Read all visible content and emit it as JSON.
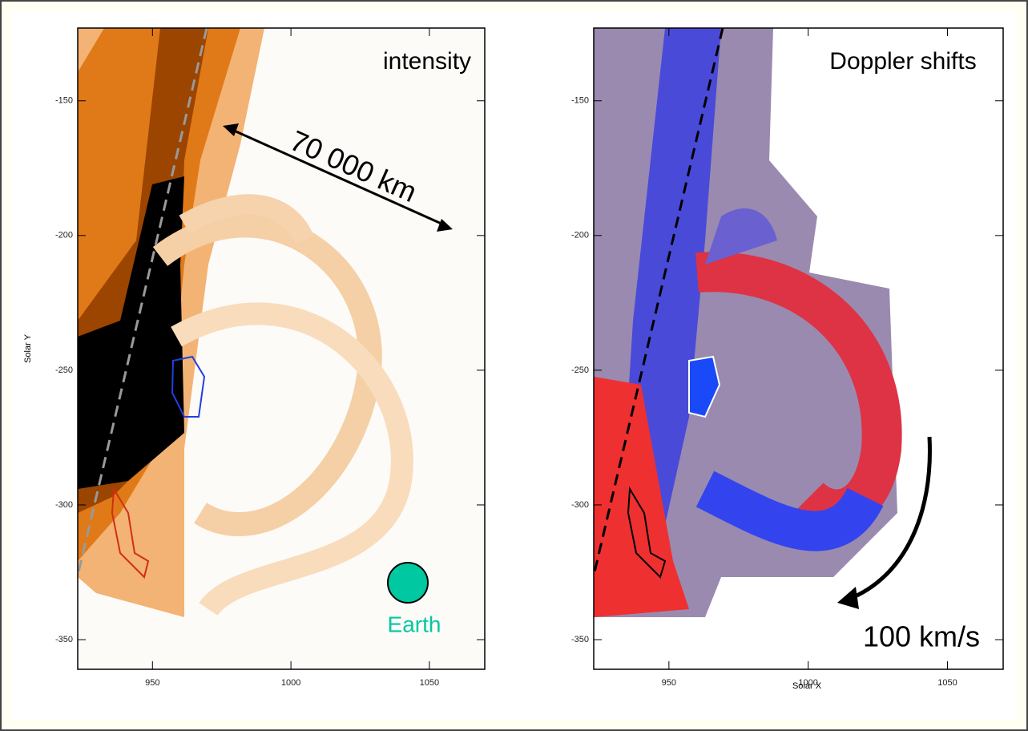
{
  "chart_data": [
    {
      "type": "image",
      "title": "intensity",
      "ylabel": "Solar Y",
      "xlim": [
        923,
        1070
      ],
      "ylim": [
        -361,
        -123
      ],
      "xticks": [
        950,
        1000,
        1050
      ],
      "yticks": [
        -150,
        -200,
        -250,
        -300,
        -350
      ],
      "annotations": [
        "70 000 km",
        "Earth"
      ]
    },
    {
      "type": "image",
      "title": "Doppler shifts",
      "xlabel": "Solar X",
      "xlim": [
        923,
        1070
      ],
      "ylim": [
        -361,
        -123
      ],
      "xticks": [
        950,
        1000,
        1050
      ],
      "yticks": [
        -150,
        -200,
        -250,
        -300,
        -350
      ],
      "annotations": [
        "100 km/s"
      ]
    }
  ]
}
